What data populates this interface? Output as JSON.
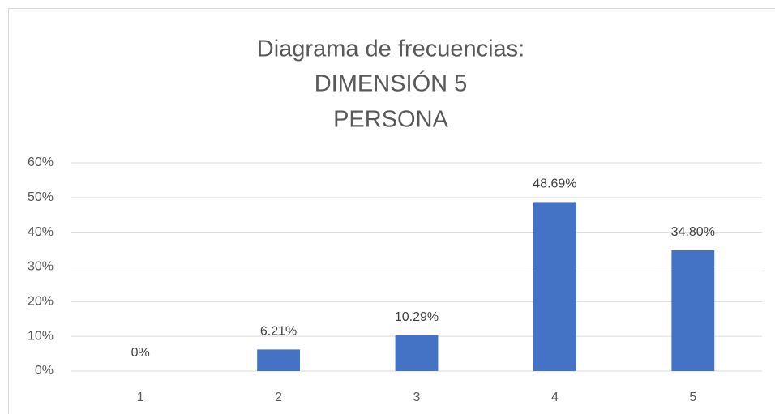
{
  "chart_data": {
    "type": "bar",
    "title": [
      "Diagrama de frecuencias:",
      "DIMENSIÓN 5",
      "PERSONA"
    ],
    "categories": [
      "1",
      "2",
      "3",
      "4",
      "5"
    ],
    "values": [
      0,
      6.21,
      10.29,
      48.69,
      34.8
    ],
    "value_labels": [
      "0%",
      "6.21%",
      "10.29%",
      "48.69%",
      "34.80%"
    ],
    "color": "#4472c4",
    "ylim": [
      0,
      60
    ],
    "yticks": [
      {
        "value": 0,
        "label": "0%"
      },
      {
        "value": 10,
        "label": "10%"
      },
      {
        "value": 20,
        "label": "20%"
      },
      {
        "value": 30,
        "label": "30%"
      },
      {
        "value": 40,
        "label": "40%"
      },
      {
        "value": 50,
        "label": "50%"
      },
      {
        "value": 60,
        "label": "60%"
      }
    ],
    "grid": true
  }
}
